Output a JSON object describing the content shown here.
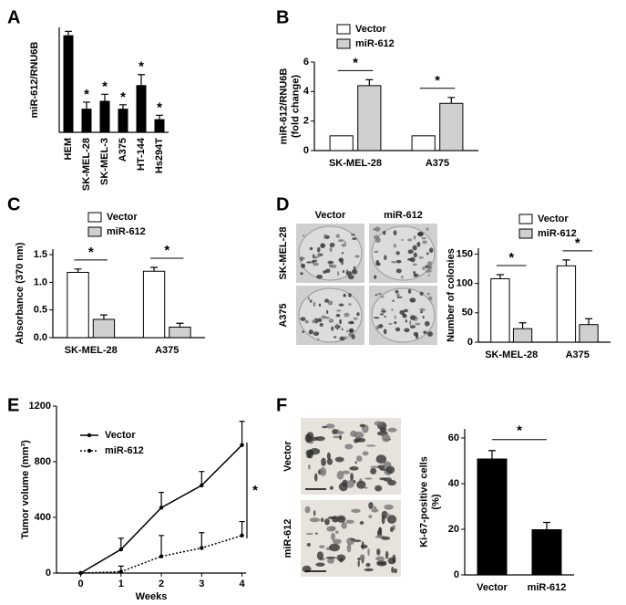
{
  "chart_data": [
    {
      "type": "bar",
      "panel_label": "A",
      "ylabel": [
        "miR-612/RNU6B"
      ],
      "categories": [
        "HEM",
        "SK-MEL-28",
        "SK-MEL-3",
        "A375",
        "HT-144",
        "Hs294T"
      ],
      "values": [
        0.37,
        0.09,
        0.12,
        0.09,
        0.18,
        0.05
      ],
      "errors": [
        0.015,
        0.025,
        0.025,
        0.015,
        0.04,
        0.015
      ],
      "color": "#000000",
      "ylim": [
        0,
        0.4
      ],
      "annotations": [
        "*",
        "*",
        "*",
        "*",
        "*"
      ]
    },
    {
      "type": "bar",
      "panel_label": "B",
      "ylabel": [
        "miR-612/RNU6B",
        "(fold change)"
      ],
      "categories": [
        "SK-MEL-28",
        "A375"
      ],
      "series": [
        {
          "name": "Vector",
          "color": "#ffffff",
          "values": [
            1,
            1
          ]
        },
        {
          "name": "miR-612",
          "color": "#d0d0d0",
          "values": [
            4.4,
            3.2
          ],
          "errors": [
            0.4,
            0.4
          ]
        }
      ],
      "ylim": [
        0,
        6
      ],
      "yticks": [
        0,
        2,
        4,
        6
      ],
      "legend": "upper left",
      "significance": [
        "*",
        "*"
      ]
    },
    {
      "type": "bar",
      "panel_label": "C",
      "ylabel": [
        "Absorbance (370 nm)"
      ],
      "categories": [
        "SK-MEL-28",
        "A375"
      ],
      "series": [
        {
          "name": "Vector",
          "color": "#ffffff",
          "values": [
            1.18,
            1.2
          ],
          "errors": [
            0.06,
            0.07
          ]
        },
        {
          "name": "miR-612",
          "color": "#d0d0d0",
          "values": [
            0.33,
            0.19
          ],
          "errors": [
            0.08,
            0.07
          ]
        }
      ],
      "ylim": [
        0,
        1.6
      ],
      "yticks": [
        {
          "value": 0,
          "label": "0.0"
        },
        0.5,
        {
          "value": 1,
          "label": "1.0"
        },
        1.5
      ],
      "legend": "upper left",
      "significance": [
        "*",
        "*"
      ]
    },
    {
      "type": "bar",
      "panel_label": "D",
      "ylabel": [
        "Number of colonies"
      ],
      "image_labels": {
        "columns": [
          "Vector",
          "miR-612"
        ],
        "rows": [
          "SK-MEL-28",
          "A375"
        ]
      },
      "categories": [
        "SK-MEL-28",
        "A375"
      ],
      "series": [
        {
          "name": "Vector",
          "color": "#ffffff",
          "values": [
            108,
            130
          ],
          "errors": [
            7,
            10
          ]
        },
        {
          "name": "miR-612",
          "color": "#d0d0d0",
          "values": [
            23,
            30
          ],
          "errors": [
            10,
            10
          ]
        }
      ],
      "ylim": [
        0,
        160
      ],
      "yticks": [
        0,
        50,
        100,
        150
      ],
      "legend": "upper left",
      "significance": [
        "*",
        "*"
      ]
    },
    {
      "type": "line",
      "panel_label": "E",
      "ylabel": [
        "Tumor volume (mm³)"
      ],
      "xlabel": "Weeks",
      "x": [
        0,
        1,
        2,
        3,
        4
      ],
      "series": [
        {
          "name": "Vector",
          "color": "#000000",
          "style": "solid",
          "values": [
            0,
            170,
            470,
            630,
            920
          ],
          "errors": [
            0,
            80,
            110,
            100,
            170
          ]
        },
        {
          "name": "miR-612",
          "color": "#000000",
          "style": "dotted",
          "values": [
            0,
            10,
            120,
            180,
            270
          ],
          "errors": [
            0,
            40,
            150,
            110,
            100
          ]
        }
      ],
      "xlim": [
        -0.6,
        4.1
      ],
      "xticks": [
        0,
        1,
        2,
        3,
        4
      ],
      "ylim": [
        0,
        1200
      ],
      "yticks": [
        0,
        400,
        800,
        1200
      ],
      "legend": "upper left",
      "significance": [
        "*"
      ]
    },
    {
      "type": "bar",
      "panel_label": "F",
      "ylabel": [
        "Ki-67-positive cells",
        "(%)"
      ],
      "image_labels": {
        "rows": [
          "Vector",
          "miR-612"
        ]
      },
      "categories": [
        "Vector",
        "miR-612"
      ],
      "values": [
        51,
        20
      ],
      "errors": [
        3.5,
        3
      ],
      "color": "#000000",
      "ylim": [
        0,
        64
      ],
      "yticks": [
        0,
        20,
        40,
        60
      ],
      "significance": [
        "*"
      ]
    }
  ]
}
